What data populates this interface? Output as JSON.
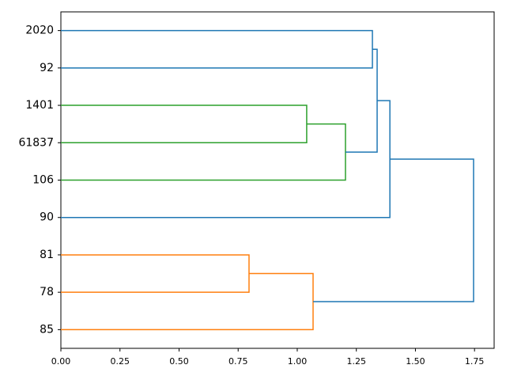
{
  "chart_data": {
    "type": "dendrogram",
    "orientation": "left",
    "categories": [
      "2020",
      "92",
      "1401",
      "61837",
      "106",
      "90",
      "81",
      "78",
      "85"
    ],
    "links": [
      {
        "children": [
          0,
          1
        ],
        "height": 1.318,
        "color": "#1f77b4"
      },
      {
        "children": [
          2,
          3
        ],
        "height": 1.04,
        "color": "#2ca02c"
      },
      {
        "children": [
          10,
          4
        ],
        "height": 1.204,
        "color": "#2ca02c"
      },
      {
        "children": [
          9,
          11
        ],
        "height": 1.338,
        "color": "#1f77b4"
      },
      {
        "children": [
          12,
          5
        ],
        "height": 1.392,
        "color": "#1f77b4"
      },
      {
        "children": [
          6,
          7
        ],
        "height": 0.796,
        "color": "#ff7f0e"
      },
      {
        "children": [
          14,
          8
        ],
        "height": 1.067,
        "color": "#ff7f0e"
      },
      {
        "children": [
          13,
          15
        ],
        "height": 1.746,
        "color": "#1f77b4"
      }
    ],
    "xlim": [
      0,
      1.833
    ],
    "xticks": [
      {
        "value": 0,
        "label": "0.00"
      },
      {
        "value": 0.25,
        "label": "0.25"
      },
      {
        "value": 0.5,
        "label": "0.50"
      },
      {
        "value": 0.75,
        "label": "0.75"
      },
      {
        "value": 1,
        "label": "1.00"
      },
      {
        "value": 1.25,
        "label": "1.25"
      },
      {
        "value": 1.5,
        "label": "1.50"
      },
      {
        "value": 1.75,
        "label": "1.75"
      }
    ]
  }
}
